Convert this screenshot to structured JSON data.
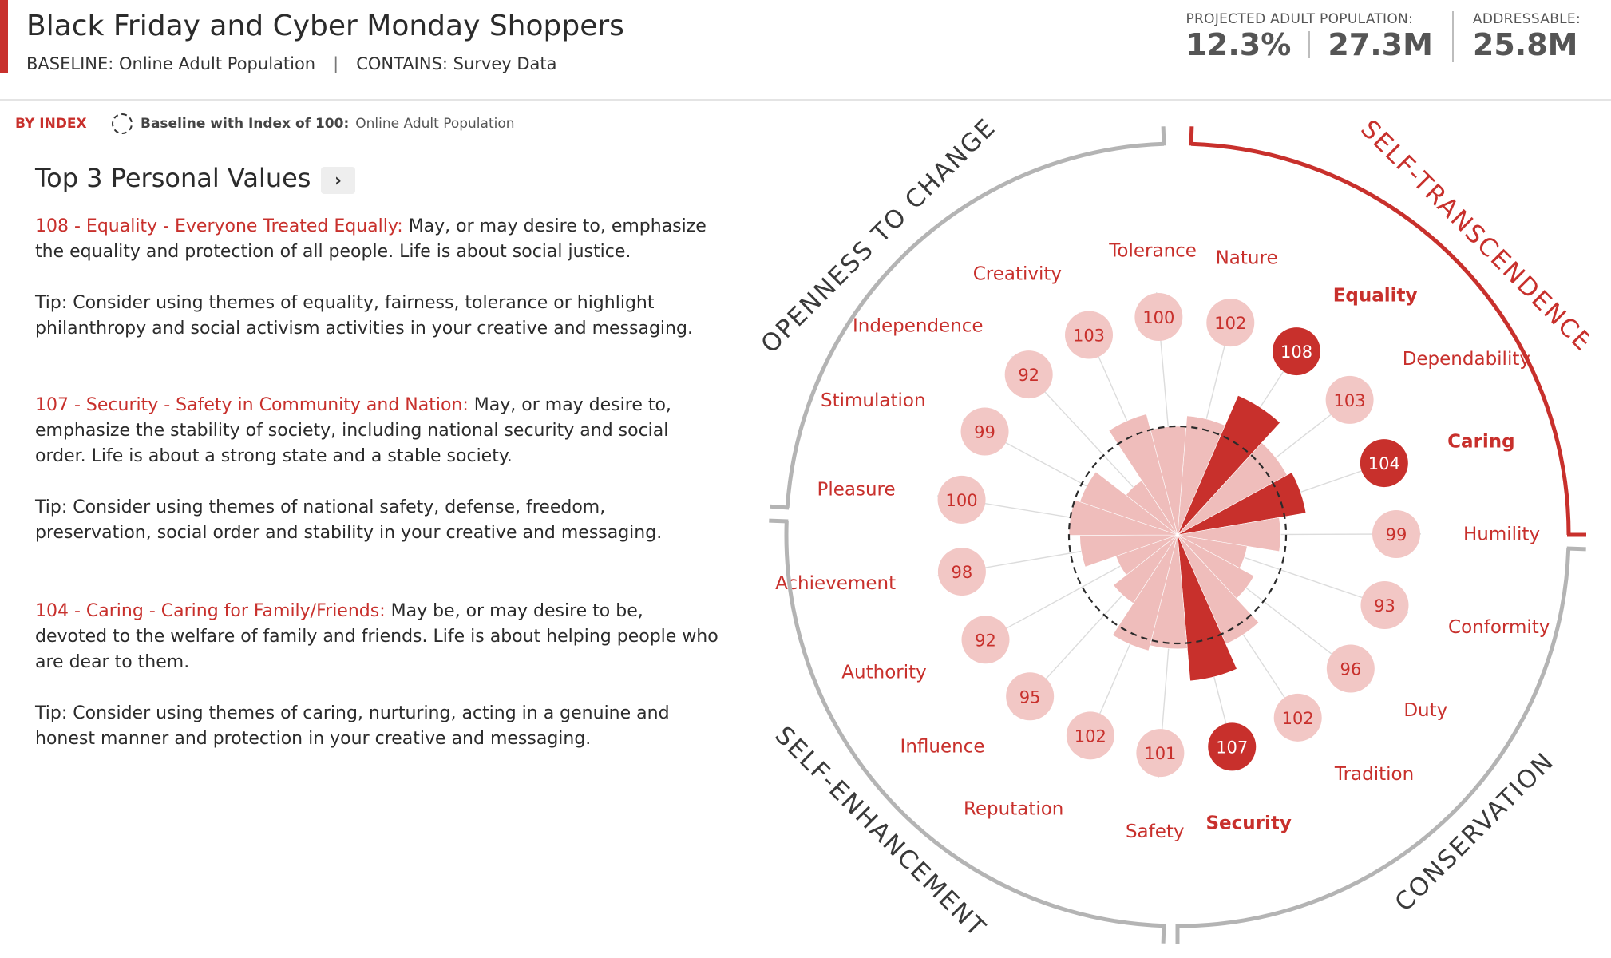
{
  "header": {
    "title": "Black Friday and Cyber Monday Shoppers",
    "baseline_text": "BASELINE: Online Adult Population",
    "contains_text": "CONTAINS: Survey Data",
    "separator": "|",
    "projected_label": "PROJECTED ADULT POPULATION:",
    "projected_percent": "12.3%",
    "projected_count": "27.3M",
    "addressable_label": "ADDRESSABLE:",
    "addressable_count": "25.8M"
  },
  "legend": {
    "by_index": "BY INDEX",
    "baseline_label": "Baseline with Index of 100:",
    "baseline_value": "Online Adult Population"
  },
  "panel": {
    "title": "Top 3 Personal Values",
    "next_glyph": "›",
    "items": [
      {
        "lead": "108 - Equality - Everyone Treated Equally:",
        "desc": " May, or may desire to, emphasize the equality and protection of all people. Life is about social justice.",
        "tip": "Tip: Consider using themes of equality, fairness, tolerance or highlight philanthropy and social activism activities in your creative and messaging."
      },
      {
        "lead": "107 - Security - Safety in Community and Nation:",
        "desc": " May, or may desire to, emphasize the stability of society, including national security and social order. Life is about a strong state and a stable society.",
        "tip": "Tip: Consider using themes of national safety, defense, freedom, preservation, social order and stability in your creative and messaging."
      },
      {
        "lead": "104 - Caring - Caring for Family/Friends:",
        "desc": " May be, or may desire to be, devoted to the welfare of family and friends. Life is about helping people who are dear to them.",
        "tip": "Tip: Consider using themes of caring, nurturing, acting in a genuine and honest manner and protection in your creative and messaging."
      }
    ]
  },
  "chart_data": {
    "type": "radial-bar",
    "baseline": 100,
    "categories": [
      "Nature",
      "Equality",
      "Dependability",
      "Caring",
      "Humility",
      "Conformity",
      "Duty",
      "Tradition",
      "Security",
      "Safety",
      "Reputation",
      "Influence",
      "Authority",
      "Achievement",
      "Pleasure",
      "Stimulation",
      "Independence",
      "Creativity",
      "Tolerance"
    ],
    "values": [
      102,
      108,
      103,
      104,
      99,
      93,
      96,
      102,
      107,
      101,
      102,
      95,
      92,
      98,
      100,
      99,
      92,
      103,
      100
    ],
    "highlighted": [
      "Equality",
      "Caring",
      "Security"
    ],
    "groups": [
      {
        "label": "SELF-TRANSCENDENCE",
        "highlighted": true
      },
      {
        "label": "CONSERVATION",
        "highlighted": false
      },
      {
        "label": "SELF-ENHANCEMENT",
        "highlighted": false
      },
      {
        "label": "OPENNESS TO CHANGE",
        "highlighted": false
      }
    ],
    "colors": {
      "accent": "#c8302c",
      "light": "#f2c7c5",
      "wedge": "#efbdbb",
      "ring": "#b4b4b4"
    }
  }
}
